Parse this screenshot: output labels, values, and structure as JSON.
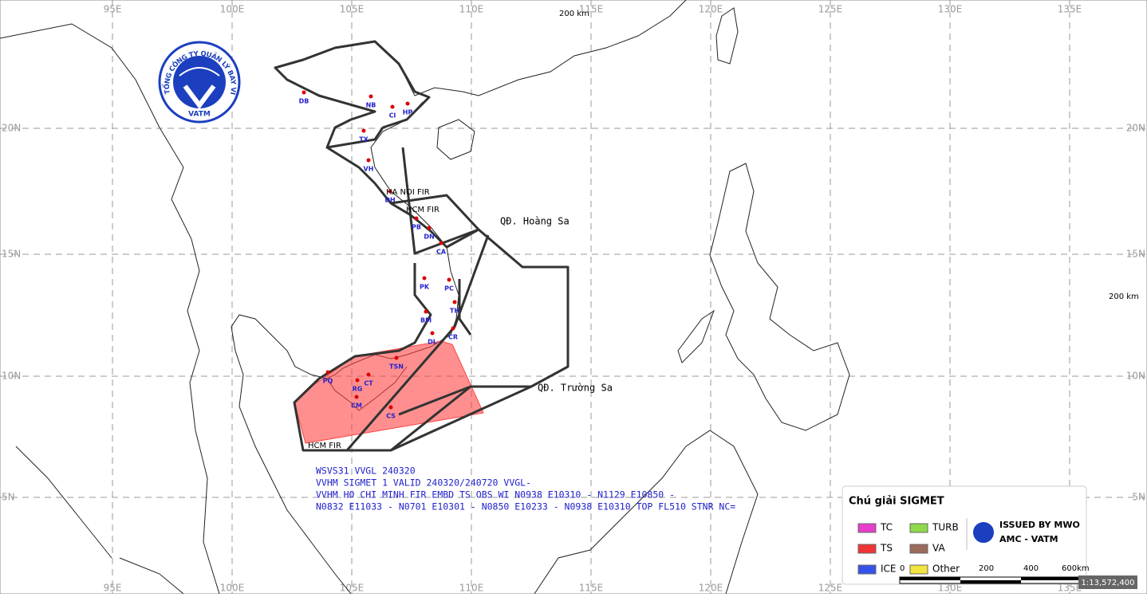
{
  "header": {
    "logo_text": "TỔNG CÔNG TY QUẢN LÝ BAY VIỆT NAM",
    "logo_abbr": "VATM"
  },
  "map": {
    "lon_labels": [
      "95E",
      "100E",
      "105E",
      "110E",
      "115E",
      "120E",
      "125E",
      "130E",
      "135E"
    ],
    "lat_labels": [
      "20N",
      "15N",
      "10N",
      "5N"
    ],
    "scale_note_top": "200 km",
    "scale_note_right": "200 km",
    "fir_labels": [
      "HA NOI FIR",
      "HCM FIR",
      "HCM FIR"
    ],
    "island_labels": [
      "QĐ. Hoàng Sa",
      "QĐ. Trường Sa"
    ],
    "airports": [
      "DB",
      "NB",
      "HP",
      "CI",
      "TX",
      "VH",
      "DH",
      "PB",
      "DN",
      "CA",
      "PK",
      "PC",
      "TH",
      "BM",
      "CR",
      "DL",
      "TSN",
      "CT",
      "RG",
      "CM",
      "CS",
      "PQ"
    ]
  },
  "sigmet": {
    "lines": [
      "WSVS31 VVGL 240320",
      "VVHM SIGMET 1 VALID 240320/240720 VVGL-",
      "VVHM HO CHI MINH FIR EMBD TS OBS WI N0938 E10310 - N1129 E10850 -",
      "N0832 E11033 - N0701 E10301 - N0850 E10233 - N0938 E10310 TOP FL510 STNR NC="
    ]
  },
  "legend": {
    "title": "Chú giải SIGMET",
    "items": [
      {
        "name": "TC",
        "color": "#e63fcb"
      },
      {
        "name": "TURB",
        "color": "#8fd94b"
      },
      {
        "name": "TS",
        "color": "#f03434"
      },
      {
        "name": "VA",
        "color": "#9b6b5c"
      },
      {
        "name": "ICE",
        "color": "#3553ea"
      },
      {
        "name": "Other",
        "color": "#f2e33f"
      }
    ],
    "issuer": [
      "ISSUED BY MWO",
      "AMC - VATM"
    ]
  },
  "scale": {
    "labels": [
      "0",
      "200",
      "400",
      "600km"
    ],
    "ratio": "1:13,572,400"
  }
}
